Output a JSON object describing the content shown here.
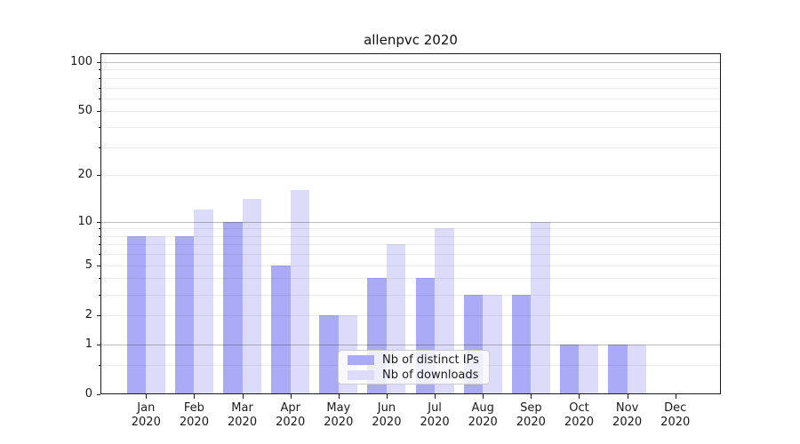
{
  "chart_data": {
    "type": "bar",
    "title": "allenpvc 2020",
    "categories": [
      "Jan",
      "Feb",
      "Mar",
      "Apr",
      "May",
      "Jun",
      "Jul",
      "Aug",
      "Sep",
      "Oct",
      "Nov",
      "Dec"
    ],
    "category_year": "2020",
    "series": [
      {
        "name": "Nb of distinct IPs",
        "color": "#aaaaf6",
        "values": [
          8,
          8,
          10,
          5,
          2,
          4,
          4,
          3,
          3,
          1,
          1,
          0
        ]
      },
      {
        "name": "Nb of downloads",
        "color": "#dcdcfa",
        "values": [
          8,
          12,
          14,
          16,
          2,
          7,
          9,
          3,
          10,
          1,
          1,
          0
        ]
      }
    ],
    "y_axis": {
      "scale": "log1p",
      "ticks": [
        0,
        1,
        2,
        5,
        10,
        20,
        50,
        100
      ],
      "major_grid": [
        1,
        10,
        100
      ],
      "minor_grid": [
        0.5,
        2,
        3,
        4,
        5,
        6,
        7,
        8,
        9,
        20,
        30,
        40,
        50,
        60,
        70,
        80,
        90
      ],
      "ylim": [
        0,
        116
      ]
    },
    "legend": {
      "location": "lower center",
      "entries": [
        "Nb of distinct IPs",
        "Nb of downloads"
      ]
    },
    "colors": {
      "major_gridline": "#bdbdbd",
      "minor_gridline": "#ececec",
      "spine": "#1a1a1a"
    }
  }
}
